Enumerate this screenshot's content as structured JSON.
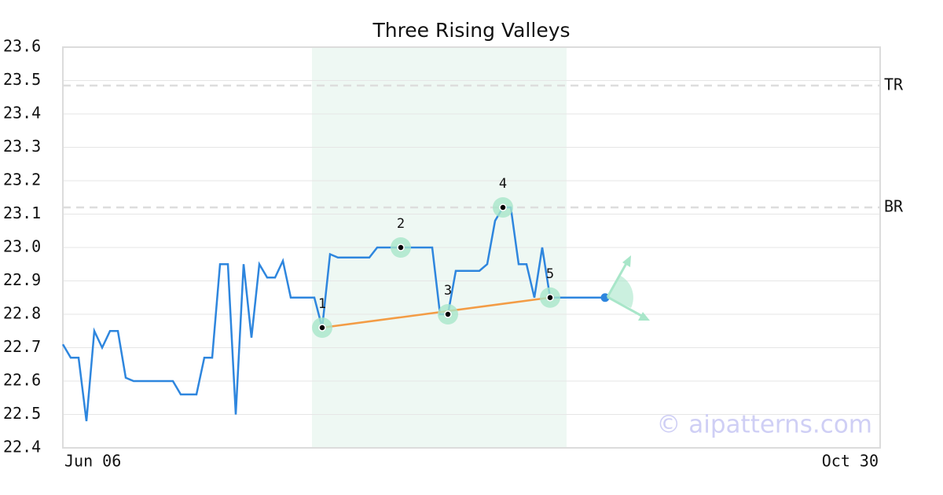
{
  "chart_data": {
    "type": "line",
    "title": "Three Rising Valleys",
    "categories": [
      "Jun 06",
      null,
      null,
      null,
      null,
      null,
      null,
      null,
      null,
      null,
      null,
      null,
      null,
      null,
      null,
      null,
      null,
      null,
      null,
      null,
      null,
      null,
      null,
      null,
      null,
      null,
      null,
      null,
      null,
      null,
      null,
      null,
      null,
      null,
      null,
      null,
      null,
      null,
      null,
      null,
      null,
      null,
      null,
      null,
      null,
      null,
      null,
      null,
      null,
      null,
      null,
      null,
      null,
      null,
      null,
      null,
      null,
      null,
      null,
      null,
      null,
      null,
      null,
      null,
      null,
      null,
      null,
      null,
      null,
      null,
      null,
      null,
      null,
      null,
      null,
      null,
      null,
      null,
      null,
      null,
      null,
      null,
      null,
      null,
      null,
      null,
      null,
      null,
      null,
      null,
      null,
      null,
      null,
      null,
      null,
      null,
      null,
      null,
      null,
      null,
      null,
      null,
      null,
      null,
      "Oct 30"
    ],
    "series": [
      {
        "color": "#2e86de",
        "values": [
          22.71,
          22.67,
          22.67,
          22.48,
          22.75,
          22.7,
          22.75,
          22.75,
          22.61,
          22.6,
          22.6,
          22.6,
          22.6,
          22.6,
          22.6,
          22.56,
          22.56,
          22.56,
          22.67,
          22.67,
          22.95,
          22.95,
          22.5,
          22.95,
          22.73,
          22.95,
          22.91,
          22.91,
          22.96,
          22.85,
          22.85,
          22.85,
          22.85,
          22.76,
          22.98,
          22.97,
          22.97,
          22.97,
          22.97,
          22.97,
          23.0,
          23.0,
          23.0,
          23.0,
          23.0,
          23.0,
          23.0,
          23.0,
          22.8,
          22.8,
          22.93,
          22.93,
          22.93,
          22.93,
          22.95,
          23.08,
          23.12,
          23.12,
          22.95,
          22.95,
          22.85,
          23.0,
          22.85,
          22.85,
          22.85,
          22.85,
          22.85,
          22.85,
          22.85,
          22.85,
          null,
          null,
          null,
          null,
          null,
          null,
          null,
          null,
          null,
          null,
          null,
          null,
          null,
          null,
          null,
          null,
          null,
          null,
          null,
          null,
          null,
          null,
          null,
          null,
          null,
          null,
          null,
          null,
          null,
          null,
          null,
          null,
          null,
          null,
          null
        ]
      }
    ],
    "pattern_points": {
      "indices": [
        33,
        43,
        49,
        56,
        62
      ],
      "labels": [
        "1",
        "2",
        "3",
        "4",
        "5"
      ],
      "color": "#a8e6c9"
    },
    "trendline_color": "#f39c45",
    "shaded_range": [
      31.7,
      64.1
    ],
    "shade_color": "#eef8f3",
    "levels": [
      {
        "label": "TR",
        "value": 23.485
      },
      {
        "label": "BR",
        "value": 23.12
      }
    ],
    "ylim": [
      22.4,
      23.6
    ],
    "yticks": [
      22.4,
      22.5,
      22.6,
      22.7,
      22.8,
      22.9,
      {
        "value": 23,
        "label": "23.0"
      },
      23.1,
      23.2,
      23.3,
      23.4,
      23.5,
      23.6
    ],
    "grid": true,
    "watermark": "© aipatterns.com"
  }
}
